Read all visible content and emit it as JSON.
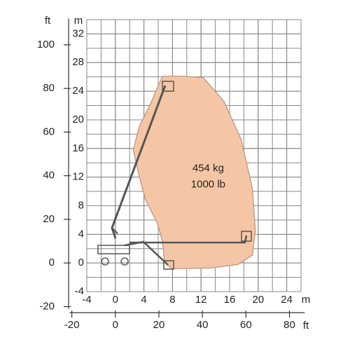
{
  "chart_data": {
    "type": "polygon",
    "x": [
      6.6,
      9.5,
      12.3,
      15.2,
      17.6,
      19.2,
      19.6,
      19.2,
      17.2,
      13.3,
      7.9,
      6.9,
      6.6,
      5.9,
      4.2,
      3.4,
      2.5,
      3.4,
      4.9
    ],
    "y": [
      26.1,
      26.1,
      25.9,
      22.6,
      17.3,
      10.4,
      4.5,
      1.1,
      -0.2,
      -0.7,
      -0.8,
      0.1,
      3.0,
      5.5,
      8.9,
      11.9,
      15.8,
      19.2,
      22.2
    ],
    "color": "#f5c6a5",
    "xlim": [
      -4,
      26
    ],
    "ylim": [
      -4,
      34
    ],
    "xticks": [
      -4,
      0,
      4,
      8,
      12,
      16,
      20,
      24
    ],
    "yticks": [
      -4,
      0,
      4,
      8,
      12,
      16,
      20,
      24,
      28,
      32
    ],
    "x_unit": "m",
    "y_unit": "m",
    "x2lim": [
      -21,
      87
    ],
    "y2lim": [
      -21,
      112
    ],
    "x2ticks": [
      -20,
      0,
      20,
      40,
      60,
      80
    ],
    "y2ticks": [
      -20,
      0,
      20,
      40,
      60,
      80,
      100
    ],
    "x2_unit": "ft",
    "y2_unit": "ft",
    "grid": true,
    "annotations": [
      "454 kg",
      "1000 lb"
    ]
  }
}
